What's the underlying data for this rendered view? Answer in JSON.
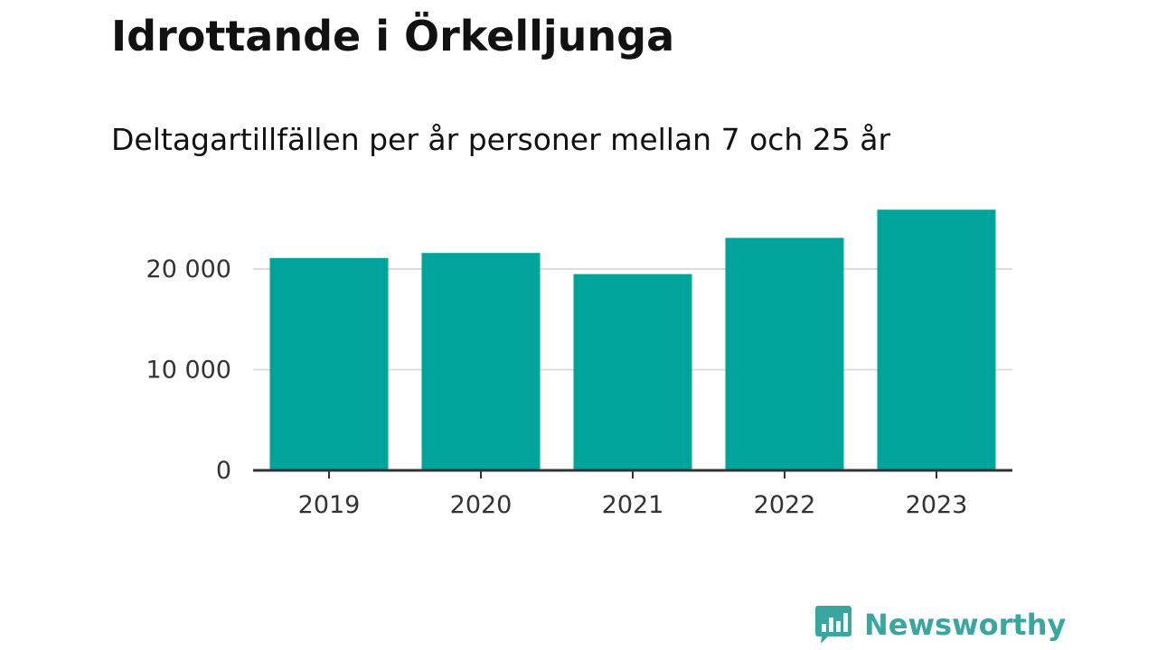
{
  "title": "Idrottande i Örkelljunga",
  "subtitle": "Deltagartillfällen per år personer mellan 7 och 25 år",
  "brand": {
    "name": "Newsworthy",
    "icon": "bar-chart-speech-bubble-icon",
    "color": "#3aa6a0"
  },
  "chart_data": {
    "type": "bar",
    "categories": [
      "2019",
      "2020",
      "2021",
      "2022",
      "2023"
    ],
    "values": [
      21100,
      21600,
      19500,
      23100,
      25900
    ],
    "yticks": [
      0,
      10000,
      20000
    ],
    "ytick_labels": [
      "0",
      "10 000",
      "20 000"
    ],
    "ylim": [
      0,
      27000
    ],
    "grid": true,
    "legend": "none",
    "bar_color": "#00a49a",
    "grid_color": "#dddddd",
    "axis_color": "#333333"
  }
}
